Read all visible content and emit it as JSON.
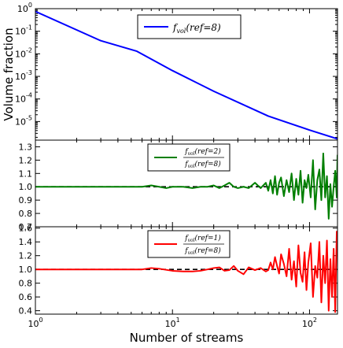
{
  "chart_data": [
    {
      "type": "line",
      "panel": "top",
      "xscale": "log",
      "yscale": "log",
      "xlim": [
        1,
        160
      ],
      "ylim": [
        1.5e-06,
        1
      ],
      "ylabel": "Volume fraction",
      "yticks": [
        1,
        0.1,
        0.01,
        0.001,
        0.0001,
        1e-05
      ],
      "ytick_labels": [
        {
          "base": "10",
          "exp": "0"
        },
        {
          "base": "10",
          "exp": "-1"
        },
        {
          "base": "10",
          "exp": "-2"
        },
        {
          "base": "10",
          "exp": "-3"
        },
        {
          "base": "10",
          "exp": "-4"
        },
        {
          "base": "10",
          "exp": "-5"
        }
      ],
      "legend_position": "top-right",
      "series": [
        {
          "legend": {
            "main": "f",
            "sub": "vol",
            "arg": "(ref=8)"
          },
          "color": "#0000ff",
          "x": [
            1,
            3,
            5.5,
            10,
            20,
            50,
            100,
            160
          ],
          "y": [
            0.75,
            0.038,
            0.013,
            0.0018,
            0.00022,
            1.75e-05,
            4.2e-06,
            1.7e-06
          ]
        }
      ]
    },
    {
      "type": "line",
      "panel": "middle",
      "xscale": "log",
      "yscale": "linear",
      "xlim": [
        1,
        160
      ],
      "ylim": [
        0.7,
        1.35
      ],
      "yticks": [
        0.7,
        0.8,
        0.9,
        1.0,
        1.1,
        1.2,
        1.3
      ],
      "ytick_labels": [
        "0.7",
        "0.8",
        "0.9",
        "1.0",
        "1.1",
        "1.2",
        "1.3"
      ],
      "reference_line": {
        "y": 1.0,
        "style": "dashed",
        "color": "#000000"
      },
      "legend_position": "top-center",
      "series": [
        {
          "legend": {
            "num": "f",
            "num_sub": "vol",
            "num_arg": "(ref=2)",
            "den": "f",
            "den_sub": "vol",
            "den_arg": "(ref=8)"
          },
          "color": "#007f00",
          "x": [
            1,
            2,
            4,
            6,
            7,
            8,
            9,
            10,
            12,
            14,
            16,
            18,
            20,
            22,
            24,
            26,
            28,
            30,
            33,
            36,
            40,
            44,
            48,
            50,
            52,
            54,
            56,
            58,
            60,
            62,
            65,
            68,
            71,
            74,
            77,
            80,
            83,
            86,
            89,
            92,
            95,
            98,
            102,
            106,
            110,
            114,
            118,
            122,
            126,
            130,
            134,
            138,
            142,
            146,
            150,
            154,
            158,
            160
          ],
          "y": [
            1.0,
            1.0,
            1.0,
            1.0,
            1.01,
            1.0,
            0.99,
            1.0,
            1.0,
            0.99,
            1.0,
            1.0,
            1.01,
            0.99,
            1.01,
            1.03,
            1.0,
            0.99,
            1.0,
            0.99,
            1.03,
            0.99,
            1.03,
            0.97,
            1.05,
            0.95,
            1.08,
            0.94,
            1.03,
            1.07,
            0.93,
            1.05,
            0.96,
            1.1,
            0.9,
            1.06,
            0.94,
            1.12,
            0.88,
            1.05,
            0.99,
            1.09,
            0.92,
            1.2,
            0.83,
            1.05,
            1.13,
            0.9,
            1.25,
            0.92,
            1.08,
            0.76,
            1.02,
            0.85,
            1.0,
            1.12,
            0.92,
            1.24
          ]
        }
      ]
    },
    {
      "type": "line",
      "panel": "bottom",
      "xscale": "log",
      "yscale": "linear",
      "xlim": [
        1,
        160
      ],
      "ylim": [
        0.35,
        1.62
      ],
      "yticks": [
        0.4,
        0.6,
        0.8,
        1.0,
        1.2,
        1.4,
        1.6
      ],
      "ytick_labels": [
        "0.4",
        "0.6",
        "0.8",
        "1.0",
        "1.2",
        "1.4",
        "1.6"
      ],
      "xticks": [
        1,
        10,
        100
      ],
      "xtick_labels": [
        {
          "base": "10",
          "exp": "0"
        },
        {
          "base": "10",
          "exp": "1"
        },
        {
          "base": "10",
          "exp": "2"
        }
      ],
      "xlabel": "Number of streams",
      "reference_line": {
        "y": 1.0,
        "style": "dashed",
        "color": "#000000"
      },
      "legend_position": "top-center",
      "series": [
        {
          "legend": {
            "num": "f",
            "num_sub": "vol",
            "num_arg": "(ref=1)",
            "den": "f",
            "den_sub": "vol",
            "den_arg": "(ref=8)"
          },
          "color": "#ff0000",
          "x": [
            1,
            2,
            4,
            6,
            7,
            8,
            10,
            12,
            14,
            16,
            18,
            20,
            22,
            24,
            26,
            28,
            30,
            33,
            36,
            40,
            44,
            48,
            50,
            52,
            54,
            56,
            58,
            60,
            62,
            65,
            68,
            71,
            74,
            77,
            80,
            83,
            86,
            89,
            92,
            95,
            98,
            102,
            106,
            110,
            114,
            118,
            122,
            126,
            130,
            134,
            138,
            142,
            146,
            150,
            154,
            158,
            160
          ],
          "y": [
            1.0,
            1.0,
            1.0,
            1.0,
            1.02,
            1.01,
            0.98,
            0.97,
            0.97,
            0.98,
            1.0,
            1.02,
            1.03,
            0.98,
            0.99,
            1.05,
            0.98,
            0.93,
            1.03,
            0.99,
            1.02,
            0.97,
            0.99,
            1.1,
            1.0,
            1.18,
            1.05,
            0.94,
            1.22,
            1.08,
            0.9,
            1.3,
            0.85,
            1.12,
            0.75,
            1.35,
            0.95,
            0.82,
            1.25,
            0.7,
            1.1,
            1.38,
            0.6,
            1.05,
            0.88,
            1.4,
            0.52,
            1.2,
            0.8,
            1.42,
            0.4,
            1.15,
            0.6,
            1.3,
            0.38,
            1.55,
            1.45
          ]
        }
      ]
    }
  ]
}
